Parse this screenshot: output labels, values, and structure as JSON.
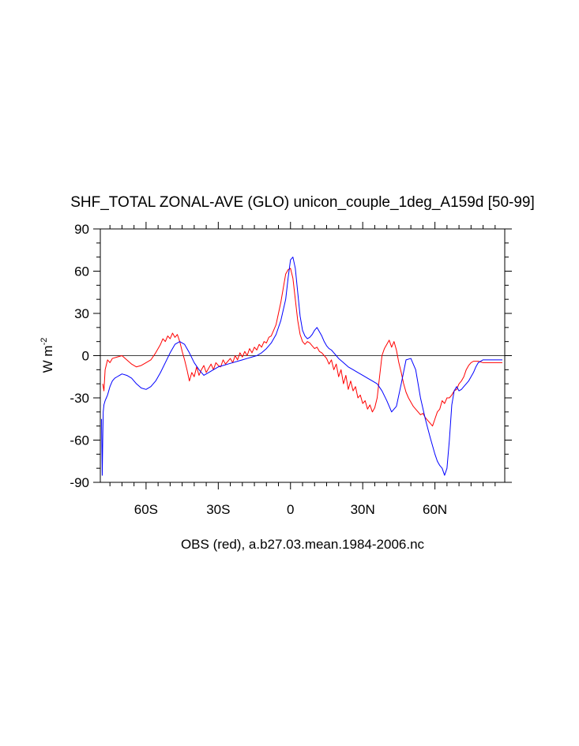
{
  "chart_data": {
    "type": "line",
    "title": "SHF_TOTAL ZONAL-AVE (GLO) unicon_couple_1deg_A159d [50-99]",
    "xlabel": "OBS (red), a.b27.03.mean.1984-2006.nc",
    "ylabel_main": "W m",
    "ylabel_sup": "-2",
    "xlim": [
      -79,
      89
    ],
    "ylim": [
      -90,
      90
    ],
    "x_ticks": [
      -60,
      -30,
      0,
      30,
      60
    ],
    "x_tick_labels": [
      "60S",
      "30S",
      "0",
      "30N",
      "60N"
    ],
    "y_ticks": [
      -90,
      -60,
      -30,
      0,
      30,
      60,
      90
    ],
    "y_tick_labels": [
      "-90",
      "-60",
      "-30",
      "0",
      "30",
      "60",
      "90"
    ],
    "zero_line": true,
    "grid": false,
    "series": [
      {
        "color": "#ff0000",
        "x": [
          -78,
          -77.5,
          -77,
          -76,
          -75,
          -74,
          -72,
          -70,
          -68,
          -66,
          -64,
          -62,
          -60,
          -58,
          -56,
          -54,
          -53,
          -52,
          -51,
          -50,
          -49,
          -48,
          -47,
          -46,
          -45,
          -44,
          -43,
          -42,
          -41,
          -40,
          -39,
          -38,
          -37,
          -36,
          -35,
          -34,
          -33,
          -32,
          -31,
          -30,
          -29,
          -28,
          -27,
          -26,
          -25,
          -24,
          -23,
          -22,
          -21,
          -20,
          -19,
          -18,
          -17,
          -16,
          -15,
          -14,
          -13,
          -12,
          -11,
          -10,
          -9,
          -8,
          -7,
          -6,
          -5,
          -4,
          -3,
          -2,
          -1,
          0,
          1,
          2,
          3,
          4,
          5,
          6,
          7,
          8,
          9,
          10,
          11,
          12,
          13,
          14,
          15,
          16,
          17,
          18,
          19,
          20,
          21,
          22,
          23,
          24,
          25,
          26,
          27,
          28,
          29,
          30,
          31,
          32,
          33,
          34,
          35,
          36,
          37,
          38,
          39,
          40,
          41,
          42,
          43,
          44,
          45,
          46,
          47,
          48,
          49,
          50,
          51,
          52,
          53,
          54,
          55,
          56,
          57,
          58,
          59,
          60,
          61,
          62,
          63,
          64,
          65,
          66,
          67,
          68,
          69,
          70,
          71,
          72,
          73,
          74,
          75,
          76,
          78,
          80,
          82,
          84,
          86,
          88
        ],
        "values": [
          -20,
          -25,
          -10,
          -3,
          -5,
          -2,
          -1,
          0,
          -3,
          -6,
          -8,
          -7,
          -5,
          -3,
          2,
          8,
          12,
          10,
          14,
          12,
          16,
          13,
          15,
          10,
          3,
          -3,
          -10,
          -18,
          -12,
          -15,
          -8,
          -14,
          -10,
          -7,
          -12,
          -9,
          -6,
          -10,
          -5,
          -7,
          -8,
          -3,
          -6,
          -4,
          -2,
          -5,
          0,
          -3,
          2,
          -1,
          3,
          0,
          5,
          2,
          6,
          4,
          8,
          6,
          10,
          9,
          13,
          14,
          18,
          22,
          30,
          38,
          48,
          58,
          61,
          62,
          55,
          40,
          25,
          15,
          10,
          8,
          10,
          9,
          7,
          5,
          6,
          3,
          2,
          0,
          -2,
          -6,
          -3,
          -10,
          -6,
          -15,
          -10,
          -20,
          -14,
          -24,
          -18,
          -25,
          -22,
          -30,
          -28,
          -34,
          -32,
          -38,
          -35,
          -40,
          -37,
          -30,
          -15,
          0,
          5,
          8,
          11,
          6,
          10,
          4,
          -5,
          -12,
          -20,
          -26,
          -30,
          -33,
          -36,
          -38,
          -40,
          -42,
          -41,
          -44,
          -46,
          -48,
          -50,
          -45,
          -40,
          -38,
          -32,
          -34,
          -30,
          -30,
          -28,
          -25,
          -24,
          -20,
          -18,
          -15,
          -10,
          -7,
          -5,
          -4,
          -4,
          -5,
          -5,
          -5,
          -5,
          -5
        ]
      },
      {
        "color": "#0000ff",
        "x": [
          -78.5,
          -78.2,
          -78,
          -77.8,
          -77.5,
          -77,
          -76.5,
          -76,
          -75,
          -74,
          -73,
          -72,
          -71,
          -70,
          -68,
          -66,
          -64,
          -62,
          -60,
          -58,
          -56,
          -54,
          -52,
          -50,
          -48,
          -46,
          -44,
          -42,
          -40,
          -38,
          -36,
          -34,
          -32,
          -30,
          -28,
          -26,
          -24,
          -22,
          -20,
          -18,
          -16,
          -14,
          -12,
          -10,
          -8,
          -6,
          -4,
          -2,
          -1,
          0,
          1,
          2,
          3,
          4,
          5,
          6,
          7,
          8,
          9,
          10,
          11,
          12,
          13,
          14,
          15,
          16,
          17,
          18,
          19,
          20,
          22,
          24,
          26,
          28,
          30,
          32,
          34,
          36,
          38,
          40,
          42,
          44,
          46,
          48,
          50,
          52,
          54,
          56,
          58,
          60,
          61,
          62,
          63,
          64,
          65,
          66,
          67,
          68,
          69,
          70,
          71,
          72,
          73,
          74,
          75,
          76,
          77,
          78,
          80,
          82,
          84,
          86,
          88
        ],
        "values": [
          -45,
          -85,
          -60,
          -40,
          -35,
          -32,
          -30,
          -28,
          -22,
          -18,
          -16,
          -15,
          -14,
          -13,
          -14,
          -16,
          -20,
          -23,
          -24,
          -22,
          -18,
          -12,
          -5,
          2,
          8,
          10,
          8,
          2,
          -5,
          -10,
          -14,
          -12,
          -10,
          -8,
          -7,
          -6,
          -5,
          -4,
          -3,
          -2,
          -1,
          0,
          2,
          5,
          9,
          15,
          25,
          40,
          55,
          68,
          70,
          62,
          45,
          28,
          18,
          14,
          12,
          13,
          15,
          18,
          20,
          17,
          14,
          10,
          7,
          5,
          4,
          2,
          0,
          -2,
          -5,
          -8,
          -10,
          -12,
          -14,
          -16,
          -18,
          -20,
          -25,
          -32,
          -40,
          -36,
          -20,
          -3,
          -2,
          -10,
          -30,
          -45,
          -58,
          -70,
          -75,
          -78,
          -80,
          -85,
          -80,
          -60,
          -35,
          -25,
          -22,
          -25,
          -24,
          -22,
          -20,
          -18,
          -15,
          -12,
          -8,
          -5,
          -3,
          -3,
          -3,
          -3,
          -3
        ]
      }
    ]
  }
}
